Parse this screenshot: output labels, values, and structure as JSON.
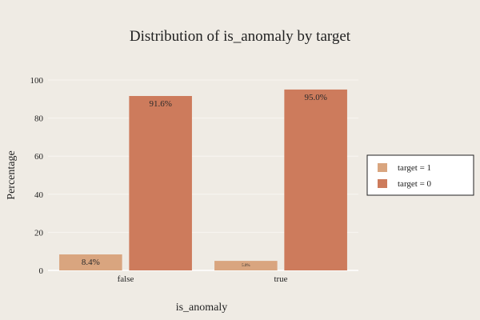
{
  "chart_data": {
    "type": "bar",
    "title": "Distribution of is_anomaly by target",
    "xlabel": "is_anomaly",
    "ylabel": "Percentage",
    "categories": [
      "false",
      "true"
    ],
    "ylim": [
      0,
      100
    ],
    "yticks": [
      0,
      20,
      40,
      60,
      80,
      100
    ],
    "grid": true,
    "legend_position": "right",
    "series": [
      {
        "name": "target = 1",
        "color": "#d9a57f",
        "values": [
          8.4,
          5.0
        ],
        "labels": [
          "8.4%",
          "5.0%"
        ]
      },
      {
        "name": "target = 0",
        "color": "#cd7b5c",
        "values": [
          91.6,
          95.0
        ],
        "labels": [
          "91.6%",
          "95.0%"
        ]
      }
    ]
  }
}
